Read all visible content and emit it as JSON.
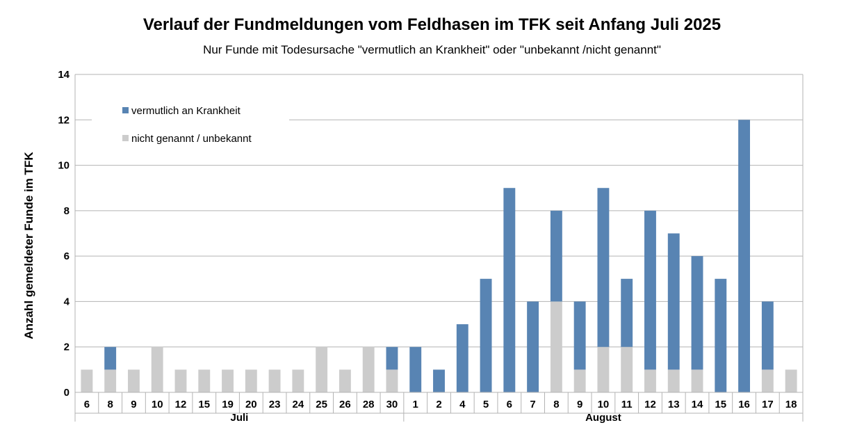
{
  "chart_data": {
    "type": "bar",
    "stacked": true,
    "title": "Verlauf der Fundmeldungen vom Feldhasen im TFK seit Anfang Juli 2025",
    "subtitle": "Nur Funde mit Todesursache \"vermutlich an Krankheit\" oder \"unbekannt /nicht genannt\"",
    "xlabel": "",
    "ylabel": "Anzahl gemeldeter Funde im TFK",
    "ylim": [
      0,
      14
    ],
    "yticks": [
      "0",
      "2",
      "4",
      "6",
      "8",
      "10",
      "12",
      "14"
    ],
    "grid": true,
    "legend_position": "top-left",
    "categories": [
      "6",
      "8",
      "9",
      "10",
      "12",
      "15",
      "19",
      "20",
      "23",
      "24",
      "25",
      "26",
      "28",
      "30",
      "1",
      "2",
      "4",
      "5",
      "6",
      "7",
      "8",
      "9",
      "10",
      "11",
      "12",
      "13",
      "14",
      "15",
      "16",
      "17",
      "18"
    ],
    "groups": [
      {
        "label": "Juli",
        "count": 14
      },
      {
        "label": "August",
        "count": 17
      }
    ],
    "series": [
      {
        "name": "nicht genannt / unbekannt",
        "color": "#cccccc",
        "values": [
          1,
          1,
          1,
          2,
          1,
          1,
          1,
          1,
          1,
          1,
          2,
          1,
          2,
          1,
          0,
          0,
          0,
          0,
          0,
          0,
          4,
          1,
          2,
          2,
          1,
          1,
          1,
          0,
          0,
          1,
          1
        ]
      },
      {
        "name": "vermutlich an Krankheit",
        "color": "#5884b3",
        "values": [
          0,
          1,
          0,
          0,
          0,
          0,
          0,
          0,
          0,
          0,
          0,
          0,
          0,
          1,
          2,
          1,
          3,
          5,
          9,
          4,
          4,
          3,
          7,
          3,
          7,
          6,
          5,
          5,
          12,
          3,
          0
        ]
      }
    ],
    "legend": [
      "vermutlich an Krankheit",
      "nicht genannt / unbekannt"
    ]
  }
}
